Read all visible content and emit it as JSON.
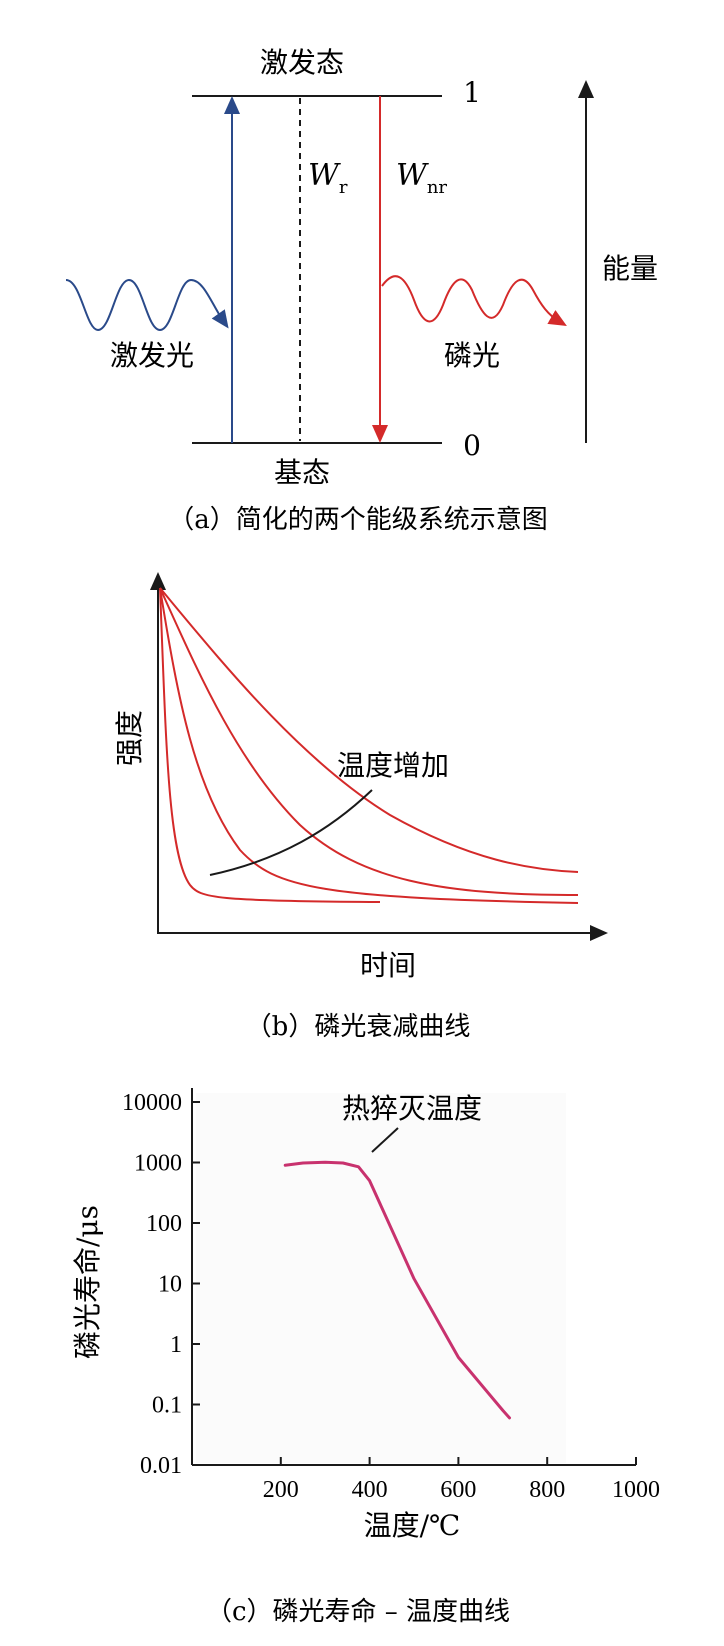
{
  "panel_a": {
    "excited_state": "激发态",
    "ground_state": "基态",
    "level_high": "1",
    "level_low": "0",
    "wr_main": "W",
    "wr_sub": "r",
    "wnr_main": "W",
    "wnr_sub": "nr",
    "excitation_light": "激发光",
    "phosphorescence": "磷光",
    "energy": "能量",
    "caption": "（a）简化的两个能级系统示意图",
    "colors": {
      "excite": "#2a4a8a",
      "emit": "#d42a2a"
    }
  },
  "panel_b": {
    "ylabel": "强度",
    "xlabel": "时间",
    "annotation": "温度增加",
    "caption": "（b）磷光衰减曲线",
    "curve_color": "#d42a2a"
  },
  "panel_c": {
    "ylabel": "磷光寿命/μs",
    "xlabel": "温度/℃",
    "annotation": "热猝灭温度",
    "caption": "（c）磷光寿命 – 温度曲线",
    "curve_color": "#c8326e",
    "yticks": [
      "10000",
      "1000",
      "100",
      "10",
      "1",
      "0.1",
      "0.01"
    ],
    "xticks": [
      "200",
      "400",
      "600",
      "800",
      "1000"
    ]
  },
  "chart_data": {
    "type": "line",
    "xlabel": "温度/℃",
    "ylabel": "磷光寿命/μs",
    "yscale": "log",
    "xlim": [
      0,
      1000
    ],
    "ylim": [
      0.01,
      10000
    ],
    "series": [
      {
        "x": [
          210,
          250,
          300,
          340,
          375,
          400,
          500,
          600,
          700,
          715
        ],
        "y": [
          900,
          980,
          1010,
          980,
          850,
          500,
          12,
          0.6,
          0.08,
          0.06
        ]
      }
    ]
  }
}
